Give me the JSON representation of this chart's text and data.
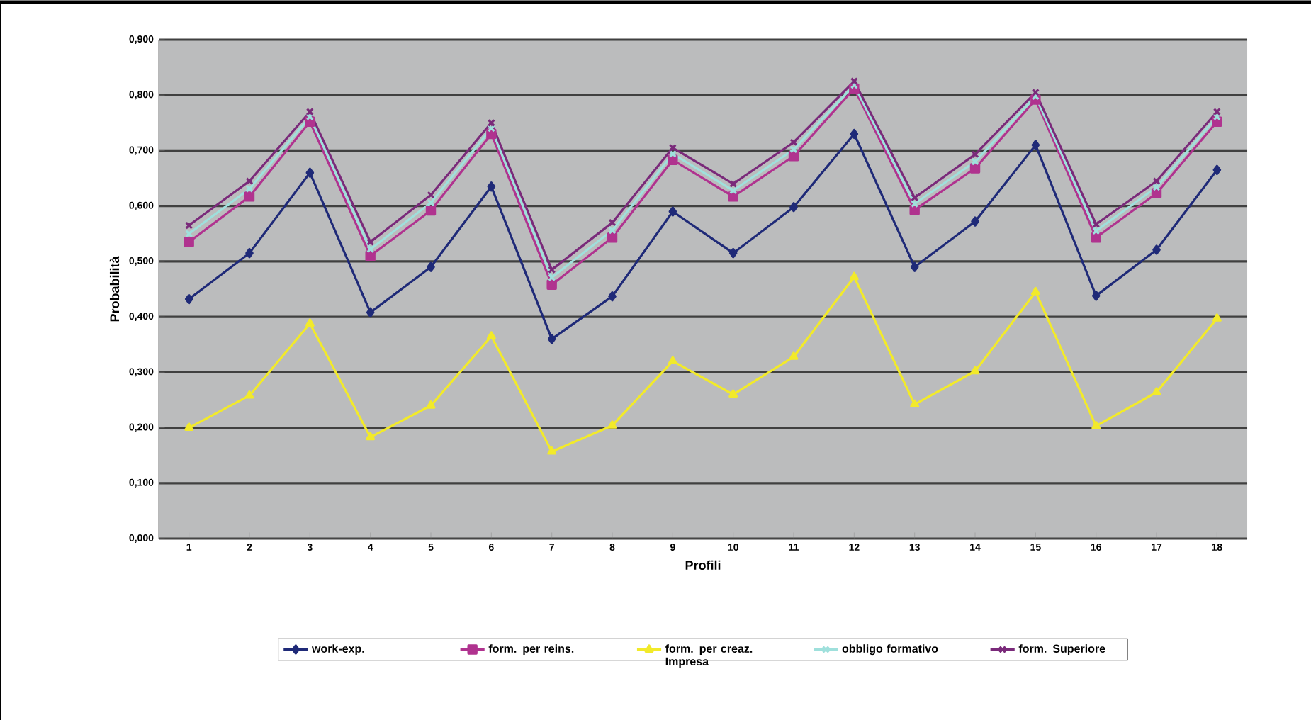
{
  "chart_data": {
    "type": "line",
    "xlabel": "Profili",
    "ylabel": "Probabilità",
    "categories": [
      "1",
      "2",
      "3",
      "4",
      "5",
      "6",
      "7",
      "8",
      "9",
      "10",
      "11",
      "12",
      "13",
      "14",
      "15",
      "16",
      "17",
      "18"
    ],
    "series": [
      {
        "name": "work-exp.",
        "color": "#1f2a78",
        "marker": "diamond",
        "values": [
          0.432,
          0.515,
          0.66,
          0.408,
          0.49,
          0.635,
          0.36,
          0.437,
          0.59,
          0.515,
          0.598,
          0.73,
          0.49,
          0.572,
          0.71,
          0.438,
          0.521,
          0.665
        ]
      },
      {
        "name": "form. per reins.",
        "color": "#b0338f",
        "marker": "square",
        "values": [
          0.535,
          0.617,
          0.752,
          0.51,
          0.592,
          0.73,
          0.458,
          0.543,
          0.683,
          0.617,
          0.69,
          0.812,
          0.593,
          0.668,
          0.792,
          0.543,
          0.623,
          0.752
        ]
      },
      {
        "name": "form. per creaz. Impresa",
        "color": "#f2ea2a",
        "marker": "triangle",
        "values": [
          0.2,
          0.258,
          0.388,
          0.183,
          0.24,
          0.365,
          0.157,
          0.204,
          0.32,
          0.26,
          0.328,
          0.472,
          0.242,
          0.302,
          0.445,
          0.203,
          0.264,
          0.397
        ]
      },
      {
        "name": "obbligo formativo",
        "color": "#9fe0dc",
        "marker": "cross",
        "values": [
          0.55,
          0.631,
          0.761,
          0.522,
          0.606,
          0.74,
          0.471,
          0.556,
          0.694,
          0.628,
          0.702,
          0.818,
          0.604,
          0.68,
          0.798,
          0.555,
          0.634,
          0.761
        ]
      },
      {
        "name": "form. Superiore",
        "color": "#7a2a7a",
        "marker": "cross",
        "values": [
          0.565,
          0.645,
          0.77,
          0.535,
          0.62,
          0.75,
          0.485,
          0.57,
          0.705,
          0.64,
          0.715,
          0.825,
          0.615,
          0.693,
          0.805,
          0.567,
          0.645,
          0.77
        ]
      }
    ],
    "ylim": [
      0,
      0.9
    ],
    "yticks": [
      {
        "value": 0,
        "label": "0,000"
      },
      {
        "value": 0.1,
        "label": "0,100"
      },
      {
        "value": 0.2,
        "label": "0,200"
      },
      {
        "value": 0.3,
        "label": "0,300"
      },
      {
        "value": 0.4,
        "label": "0,400"
      },
      {
        "value": 0.5,
        "label": "0,500"
      },
      {
        "value": 0.6,
        "label": "0,600"
      },
      {
        "value": 0.7,
        "label": "0,700"
      },
      {
        "value": 0.8,
        "label": "0,800"
      },
      {
        "value": 0.9,
        "label": "0,900"
      }
    ],
    "grid": "y",
    "legend": "bottom",
    "line_style": "solid"
  }
}
